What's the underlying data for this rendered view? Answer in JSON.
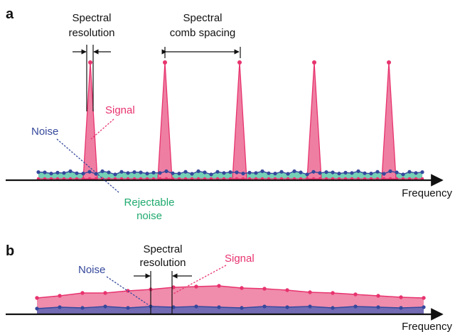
{
  "panel_a": {
    "label": "a",
    "spectral_resolution": [
      "Spectral",
      "resolution"
    ],
    "comb_spacing": [
      "Spectral",
      "comb spacing"
    ],
    "signal": "Signal",
    "noise": "Noise",
    "rejectable_noise": [
      "Rejectable",
      "noise"
    ],
    "axis": "Frequency"
  },
  "panel_b": {
    "label": "b",
    "spectral_resolution": [
      "Spectral",
      "resolution"
    ],
    "signal": "Signal",
    "noise": "Noise",
    "axis": "Frequency"
  },
  "colors": {
    "signal": "#e8336e",
    "signal_fill": "#ee7fa3",
    "noise": "#35489c",
    "noise_fill": "#6b63b0",
    "rejectable": "#1faa6e",
    "rejectable_fill": "#5cc8a9",
    "axis": "#111111"
  }
}
